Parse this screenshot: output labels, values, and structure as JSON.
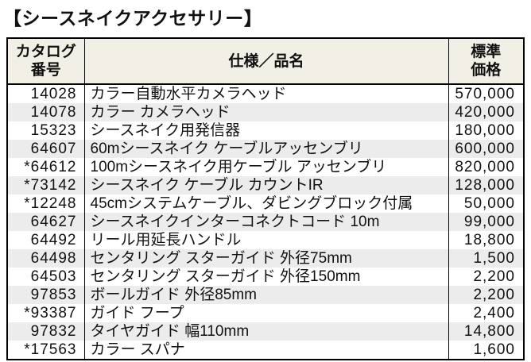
{
  "title": "【シースネイクアクセサリー】",
  "colors": {
    "header_bg": "#f2efe6",
    "row_alt_bg": "#ececec",
    "border": "#000000",
    "text": "#111111"
  },
  "table": {
    "headers": {
      "catalog_line1": "カタログ",
      "catalog_line2": "番号",
      "spec": "仕様／品名",
      "price_line1": "標準",
      "price_line2": "価格"
    },
    "rows": [
      {
        "no": "14028",
        "name": "カラー自動水平カメラヘッド",
        "price": "570,000"
      },
      {
        "no": "14078",
        "name": "カラー カメラヘッド",
        "price": "420,000"
      },
      {
        "no": "15323",
        "name": "シースネイク用発信器",
        "price": "180,000"
      },
      {
        "no": "64607",
        "name": "60mシースネイク ケーブルアッセンブリ",
        "price": "600,000"
      },
      {
        "no": "*64612",
        "name": "100mシースネイク用ケーブル アッセンブリ",
        "price": "820,000"
      },
      {
        "no": "*73142",
        "name": "シースネイク ケーブル カウントIR",
        "price": "128,000"
      },
      {
        "no": "*12248",
        "name": "45cmシステムケーブル、ダビングブロック付属",
        "price": "50,000"
      },
      {
        "no": "64627",
        "name": "シースネイクインターコネクトコード 10m",
        "price": "99,000"
      },
      {
        "no": "64492",
        "name": "リール用延長ハンドル",
        "price": "18,800"
      },
      {
        "no": "64498",
        "name": "センタリング スターガイド 外径75mm",
        "price": "1,500"
      },
      {
        "no": "64503",
        "name": "センタリング スターガイド 外径150mm",
        "price": "2,200"
      },
      {
        "no": "97853",
        "name": "ボールガイド 外径85mm",
        "price": "2,200"
      },
      {
        "no": "*93387",
        "name": "ガイド フープ",
        "price": "2,400"
      },
      {
        "no": "97832",
        "name": "タイヤガイド 幅110mm",
        "price": "14,800"
      },
      {
        "no": "*17563",
        "name": "カラー スパナ",
        "price": "1,600"
      }
    ]
  }
}
